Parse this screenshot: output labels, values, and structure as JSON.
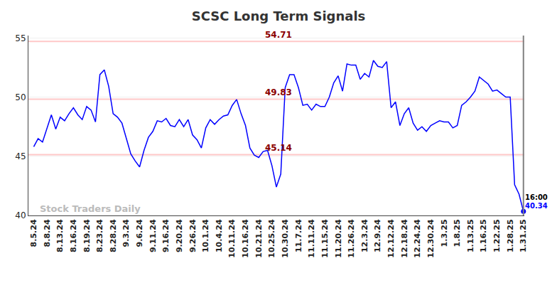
{
  "chart_data": {
    "type": "line",
    "title": "SCSC Long Term Signals",
    "watermark": "Stock Traders Daily",
    "color": "#0000ff",
    "grid": true,
    "categories": [
      "8.5.24",
      null,
      null,
      "8.8.24",
      null,
      null,
      "8.13.24",
      null,
      null,
      "8.16.24",
      null,
      null,
      "8.19.24",
      null,
      null,
      "8.23.24",
      null,
      null,
      "8.28.24",
      null,
      null,
      "9.3.24",
      null,
      null,
      "9.6.24",
      null,
      null,
      "9.11.24",
      null,
      null,
      "9.16.24",
      null,
      null,
      "9.20.24",
      null,
      null,
      "9.26.24",
      null,
      null,
      "10.1.24",
      null,
      null,
      "10.4.24",
      null,
      null,
      "10.11.24",
      null,
      null,
      "10.16.24",
      null,
      null,
      "10.21.24",
      null,
      null,
      "10.25.24",
      null,
      null,
      "10.30.24",
      null,
      null,
      "11.7.24",
      null,
      null,
      "11.11.24",
      null,
      null,
      "11.15.24",
      null,
      null,
      "11.20.24",
      null,
      null,
      "11.26.24",
      null,
      null,
      "12.3.24",
      null,
      null,
      "12.9.24",
      null,
      null,
      "12.12.24",
      null,
      null,
      "12.18.24",
      null,
      null,
      "12.24.24",
      null,
      null,
      "12.30.24",
      null,
      null,
      "1.3.25",
      null,
      null,
      "1.8.25",
      null,
      null,
      "1.13.25",
      null,
      null,
      "1.16.25",
      null,
      null,
      "1.22.25",
      null,
      null,
      "1.28.25",
      null,
      null,
      "1.31.25"
    ],
    "values": [
      45.8,
      46.5,
      46.2,
      47.4,
      48.5,
      47.3,
      48.3,
      48.0,
      48.6,
      49.1,
      48.5,
      48.1,
      49.2,
      48.9,
      47.9,
      51.9,
      52.3,
      50.9,
      48.6,
      48.3,
      47.8,
      46.5,
      45.2,
      44.6,
      44.1,
      45.5,
      46.6,
      47.1,
      48.0,
      47.9,
      48.2,
      47.6,
      47.5,
      48.1,
      47.5,
      48.1,
      46.8,
      46.4,
      45.7,
      47.4,
      48.1,
      47.7,
      48.1,
      48.4,
      48.5,
      49.3,
      49.8,
      48.6,
      47.6,
      45.7,
      45.1,
      44.9,
      45.4,
      45.5,
      44.2,
      42.4,
      43.5,
      50.8,
      51.9,
      51.9,
      50.8,
      49.3,
      49.4,
      48.9,
      49.4,
      49.2,
      49.2,
      50.0,
      51.2,
      51.8,
      50.5,
      52.8,
      52.7,
      52.7,
      51.5,
      52.0,
      51.7,
      53.1,
      52.6,
      52.5,
      53.0,
      49.1,
      49.6,
      47.6,
      48.6,
      49.1,
      47.8,
      47.2,
      47.5,
      47.1,
      47.6,
      47.8,
      48.0,
      47.9,
      47.9,
      47.4,
      47.6,
      49.3,
      49.6,
      50.0,
      50.5,
      51.7,
      51.4,
      51.1,
      50.5,
      50.6,
      50.3,
      50.0,
      50.0,
      42.6,
      41.8,
      40.34
    ],
    "levels": [
      54.71,
      49.83,
      45.14
    ],
    "last_label": {
      "time": "16:00",
      "value": 40.34
    },
    "ylim": [
      40,
      55.2
    ],
    "yticks": [
      40,
      45,
      50,
      55
    ]
  }
}
